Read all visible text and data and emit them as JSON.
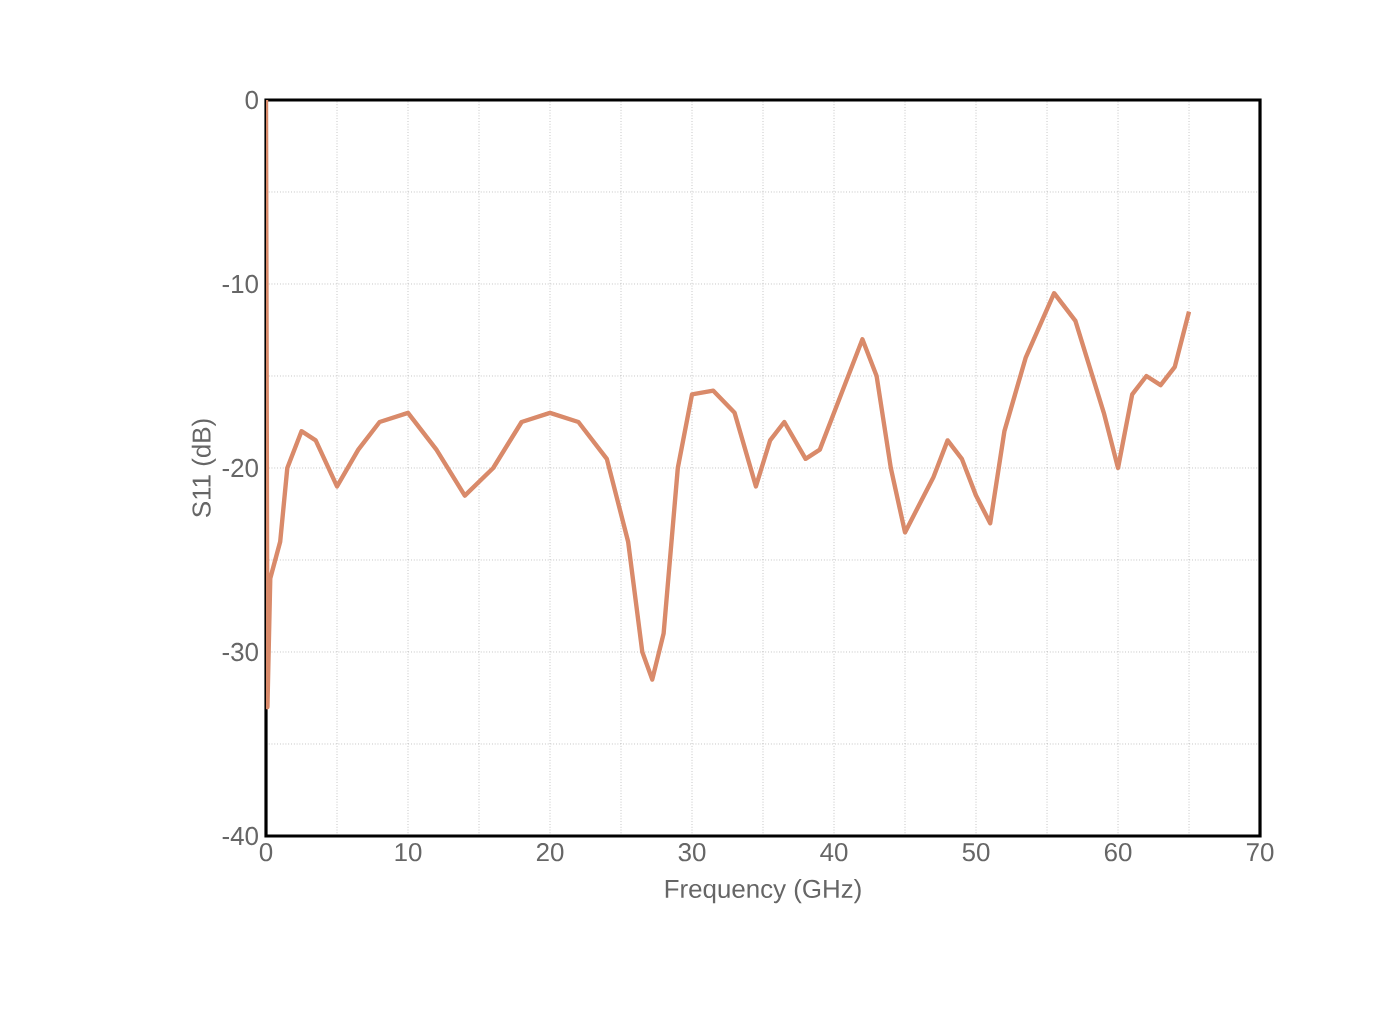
{
  "chart_data": {
    "type": "line",
    "xlabel": "Frequency (GHz)",
    "ylabel": "S11 (dB)",
    "xlim": [
      0,
      70
    ],
    "ylim": [
      -40,
      0
    ],
    "xticks": [
      0,
      {
        "value": 5,
        "label": null
      },
      10,
      {
        "value": 15,
        "label": null
      },
      20,
      {
        "value": 25,
        "label": null
      },
      30,
      {
        "value": 35,
        "label": null
      },
      40,
      {
        "value": 45,
        "label": null
      },
      50,
      {
        "value": 55,
        "label": null
      },
      60,
      {
        "value": 65,
        "label": null
      },
      70
    ],
    "yticks": [
      -40,
      {
        "value": -35,
        "label": null
      },
      -30,
      {
        "value": -25,
        "label": null
      },
      -20,
      {
        "value": -15,
        "label": null
      },
      -10,
      {
        "value": -5,
        "label": null
      },
      0
    ],
    "grid": true,
    "line_style": "solid",
    "marker": "none",
    "series": [
      {
        "color": "#d98a6a",
        "x": [
          0,
          0.1,
          0.3,
          1,
          1.5,
          2.5,
          3.5,
          5,
          6.5,
          8,
          10,
          12,
          14,
          16,
          18,
          20,
          22,
          24,
          25.5,
          26.5,
          27.2,
          28,
          29,
          30,
          31.5,
          33,
          34.5,
          35.5,
          36.5,
          38,
          39,
          40,
          42,
          43,
          44,
          45,
          47,
          48,
          49,
          50,
          51,
          52,
          53.5,
          55.5,
          57,
          59,
          60,
          61,
          62,
          63,
          64,
          65
        ],
        "values": [
          0,
          -33,
          -26,
          -24,
          -20,
          -18,
          -18.5,
          -21,
          -19,
          -17.5,
          -17,
          -19,
          -21.5,
          -20,
          -17.5,
          -17,
          -17.5,
          -19.5,
          -24,
          -30,
          -31.5,
          -29,
          -20,
          -16,
          -15.8,
          -17,
          -21,
          -18.5,
          -17.5,
          -19.5,
          -19,
          -17,
          -13,
          -15,
          -20,
          -23.5,
          -20.5,
          -18.5,
          -19.5,
          -21.5,
          -23,
          -18,
          -14,
          -10.5,
          -12,
          -17,
          -20,
          -16,
          -15,
          -15.5,
          -14.5,
          -11.5
        ]
      }
    ]
  }
}
